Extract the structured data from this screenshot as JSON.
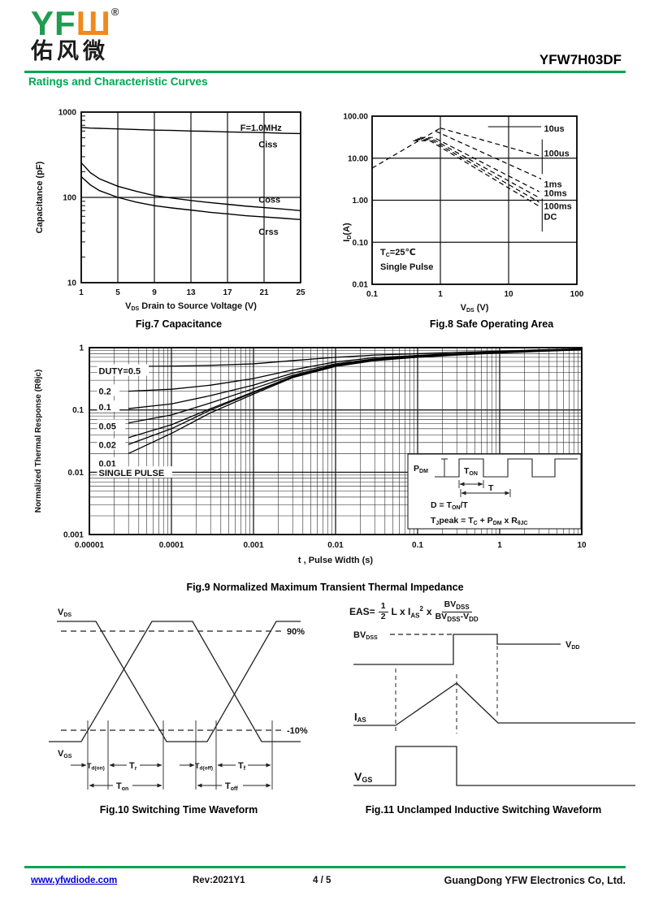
{
  "colors": {
    "accent_green": "#00A651",
    "logo_orange": "#F08A1D",
    "logo_green": "#1F9D4E",
    "link_blue": "#0000D4"
  },
  "header": {
    "logo_green": "YF",
    "logo_orange": "Ш",
    "logo_reg": "®",
    "logo_cn": "佑风微",
    "part_number": "YFW7H03DF",
    "section_title": "Ratings and Characteristic Curves"
  },
  "figures": {
    "fig7_caption": "Fig.7 Capacitance",
    "fig8_caption": "Fig.8 Safe Operating Area",
    "fig9_caption": "Fig.9 Normalized Maximum Transient Thermal Impedance",
    "fig10_caption": "Fig.10 Switching Time Waveform",
    "fig11_caption": "Fig.11 Unclamped Inductive Switching Waveform"
  },
  "fig7": {
    "xlabel_v": "V",
    "xlabel_sub": "DS",
    "xlabel_rest": " Drain to Source Voltage (V)",
    "ylabel": "Capacitance (pF)"
  },
  "fig8": {
    "xlabel_v": "V",
    "xlabel_sub": "DS",
    "xlabel_rest": " (V)",
    "ylabel_i": "I",
    "ylabel_sub": "D",
    "ylabel_rest": "(A)",
    "cond1_t": "T",
    "cond1_sub": "C",
    "cond1_rest": "=25℃",
    "cond2": "Single Pulse"
  },
  "fig9": {
    "xlabel": "t , Pulse Width (s)",
    "ylabel": "Normalized Thermal Response (Rθjc)",
    "inset": {
      "pdm": [
        "P",
        "DM"
      ],
      "ton": [
        "T",
        "ON"
      ],
      "t": "T",
      "d_formula": [
        "D = T",
        "ON",
        "/T"
      ],
      "tj": [
        "T",
        "J",
        "peak = T",
        "C",
        " + P",
        "DM",
        " x R",
        "θJC"
      ]
    }
  },
  "fig10": {
    "labels": {
      "vds": [
        "V",
        "DS"
      ],
      "vgs": [
        "V",
        "GS"
      ],
      "p90": "90%",
      "p10": "-10%",
      "tdon": [
        "T",
        "d(on)"
      ],
      "tr": [
        "T",
        "r"
      ],
      "ton": [
        "T",
        "on"
      ],
      "tdoff": [
        "T",
        "d(off)"
      ],
      "tf": [
        "T",
        "f"
      ],
      "toff": [
        "T",
        "off"
      ]
    }
  },
  "fig11": {
    "formula": {
      "lhs": "EAS=",
      "num": "1",
      "den": "2",
      "mid": "L x I",
      "mid_sub": "AS",
      "sup": "2",
      "times": "x",
      "fn1": "BV",
      "fn2": "DSS",
      "fd1": "BV",
      "fd2": "DSS",
      "fd3": "-V",
      "fd4": "DD"
    },
    "labels": {
      "bv": [
        "BV",
        "DSS"
      ],
      "vdd": [
        "V",
        "DD"
      ],
      "ias": [
        "I",
        "AS"
      ],
      "vgs": [
        "V",
        "GS"
      ]
    }
  },
  "footer": {
    "url": "www.yfwdiode.com",
    "rev": "Rev:2021Y1",
    "page": "4 / 5",
    "company": "GuangDong YFW Electronics Co, Ltd."
  },
  "chart_data": [
    {
      "id": "fig7",
      "type": "line",
      "title": "Fig.7 Capacitance",
      "xlabel": "VDS Drain to Source Voltage (V)",
      "ylabel": "Capacitance (pF)",
      "x_scale": "linear",
      "y_scale": "log",
      "xlim": [
        1,
        25
      ],
      "ylim": [
        10,
        1000
      ],
      "x_ticks": [
        1,
        5,
        9,
        13,
        17,
        21,
        25
      ],
      "y_ticks": [
        1000,
        100,
        10
      ],
      "x_grid": [
        5,
        9,
        13,
        17,
        21
      ],
      "y_grid": [
        100
      ],
      "annotation": {
        "text": "F=1.0MHz",
        "x": 18.4,
        "y": 660
      },
      "x": [
        1,
        2,
        3,
        5,
        7,
        9,
        11,
        13,
        15,
        17,
        19,
        21,
        23,
        25
      ],
      "series": [
        {
          "name": "Ciss",
          "values": [
            660,
            650,
            645,
            635,
            625,
            615,
            610,
            600,
            595,
            585,
            580,
            575,
            565,
            560
          ],
          "label_x": 20.4,
          "label_y": 420
        },
        {
          "name": "Coss",
          "values": [
            255,
            195,
            165,
            135,
            118,
            105,
            98,
            92,
            87,
            83,
            79,
            76,
            73,
            70
          ],
          "label_x": 20.4,
          "label_y": 95
        },
        {
          "name": "Crss",
          "values": [
            175,
            140,
            120,
            100,
            88,
            80,
            75,
            71,
            67,
            64,
            61,
            59,
            57,
            55
          ],
          "label_x": 20.4,
          "label_y": 40
        }
      ]
    },
    {
      "id": "fig8",
      "type": "line",
      "title": "Fig.8 Safe Operating Area",
      "xlabel": "VDS (V)",
      "ylabel": "ID(A)",
      "x_scale": "log",
      "y_scale": "log",
      "xlim": [
        0.1,
        100
      ],
      "ylim": [
        0.01,
        100
      ],
      "x_ticks": [
        "0.1",
        "1",
        "10",
        "100"
      ],
      "y_ticks": [
        "100.00",
        "10.00",
        "1.00",
        "0.10",
        "0.01"
      ],
      "x_grid": [
        1,
        10
      ],
      "y_grid": [
        10,
        1,
        0.1
      ],
      "conditions": [
        "TC=25℃",
        "Single Pulse"
      ],
      "series": [
        {
          "name": "limit",
          "points": [
            [
              0.1,
              5.8
            ],
            [
              1.0,
              52
            ]
          ]
        },
        {
          "name": "10us",
          "points": [
            [
              1.0,
              52
            ],
            [
              30,
              11
            ]
          ]
        },
        {
          "name": "100us",
          "points": [
            [
              0.85,
              44
            ],
            [
              30,
              3.2
            ]
          ]
        },
        {
          "name": "1ms",
          "points": [
            [
              0.5,
              31
            ],
            [
              0.8,
              31
            ],
            [
              28,
              1.6
            ]
          ]
        },
        {
          "name": "10ms",
          "points": [
            [
              0.46,
              29
            ],
            [
              0.75,
              29
            ],
            [
              28,
              1.15
            ]
          ]
        },
        {
          "name": "100ms",
          "points": [
            [
              0.43,
              27.5
            ],
            [
              0.72,
              27.5
            ],
            [
              28,
              0.9
            ]
          ]
        },
        {
          "name": "DC",
          "points": [
            [
              0.4,
              26
            ],
            [
              0.7,
              26
            ],
            [
              28,
              0.72
            ]
          ]
        }
      ],
      "leaders": [
        [
          [
            5,
            56
          ],
          [
            30,
            56
          ]
        ],
        [
          [
            31,
            4.2
          ],
          [
            31,
            28
          ]
        ],
        [
          [
            31,
            0.18
          ],
          [
            31,
            1.1
          ]
        ]
      ],
      "labels": [
        {
          "text": "10us",
          "x": 33,
          "y": 50
        },
        {
          "text": "100us",
          "x": 33,
          "y": 13
        },
        {
          "text": "1ms",
          "x": 33,
          "y": 2.4
        },
        {
          "text": "10ms",
          "x": 33,
          "y": 1.45
        },
        {
          "text": "100ms",
          "x": 33,
          "y": 0.72
        },
        {
          "text": "DC",
          "x": 33,
          "y": 0.4
        }
      ]
    },
    {
      "id": "fig9",
      "type": "line",
      "title": "Fig.9 Normalized Maximum Transient Thermal Impedance",
      "xlabel": "t , Pulse Width (s)",
      "ylabel": "Normalized Thermal Response (Rθjc)",
      "x_scale": "log",
      "y_scale": "log",
      "xlim": [
        1e-05,
        10
      ],
      "ylim": [
        0.001,
        1
      ],
      "x_ticks": [
        "0.00001",
        "0.0001",
        "0.001",
        "0.01",
        "0.1",
        "1",
        "10"
      ],
      "y_ticks": [
        "1",
        "0.1",
        "0.01",
        "0.001"
      ],
      "t": [
        3e-05,
        0.0001,
        0.0003,
        0.001,
        0.003,
        0.01,
        0.03,
        0.1,
        0.3,
        1,
        3,
        10
      ],
      "series": [
        {
          "name": "DUTY=0.5",
          "values": [
            0.5,
            0.505,
            0.52,
            0.55,
            0.62,
            0.7,
            0.76,
            0.8,
            0.84,
            0.88,
            0.92,
            0.96
          ]
        },
        {
          "name": "0.2",
          "values": [
            0.2,
            0.215,
            0.25,
            0.32,
            0.44,
            0.59,
            0.69,
            0.75,
            0.8,
            0.855,
            0.9,
            0.95
          ]
        },
        {
          "name": "0.1",
          "values": [
            0.105,
            0.125,
            0.17,
            0.25,
            0.39,
            0.55,
            0.66,
            0.73,
            0.79,
            0.845,
            0.895,
            0.945
          ]
        },
        {
          "name": "0.05",
          "values": [
            0.062,
            0.083,
            0.13,
            0.22,
            0.36,
            0.53,
            0.645,
            0.72,
            0.78,
            0.84,
            0.89,
            0.94
          ]
        },
        {
          "name": "0.02",
          "values": [
            0.036,
            0.058,
            0.105,
            0.195,
            0.345,
            0.515,
            0.635,
            0.715,
            0.775,
            0.835,
            0.885,
            0.935
          ]
        },
        {
          "name": "0.01",
          "values": [
            0.028,
            0.05,
            0.1,
            0.19,
            0.34,
            0.51,
            0.63,
            0.71,
            0.77,
            0.83,
            0.88,
            0.93
          ]
        },
        {
          "name": "SINGLE PULSE",
          "values": [
            0.02,
            0.042,
            0.09,
            0.18,
            0.33,
            0.5,
            0.62,
            0.7,
            0.76,
            0.82,
            0.87,
            0.92
          ]
        }
      ],
      "labels": [
        {
          "text": "DUTY=0.5",
          "t": 1.3e-05,
          "v": 0.4
        },
        {
          "text": "0.2",
          "t": 1.3e-05,
          "v": 0.19
        },
        {
          "text": "0.1",
          "t": 1.3e-05,
          "v": 0.105
        },
        {
          "text": "0.05",
          "t": 1.3e-05,
          "v": 0.052
        },
        {
          "text": "0.02",
          "t": 1.3e-05,
          "v": 0.026
        },
        {
          "text": "0.01",
          "t": 1.3e-05,
          "v": 0.013
        },
        {
          "text": "SINGLE PULSE",
          "t": 1.3e-05,
          "v": 0.0092
        }
      ]
    }
  ]
}
